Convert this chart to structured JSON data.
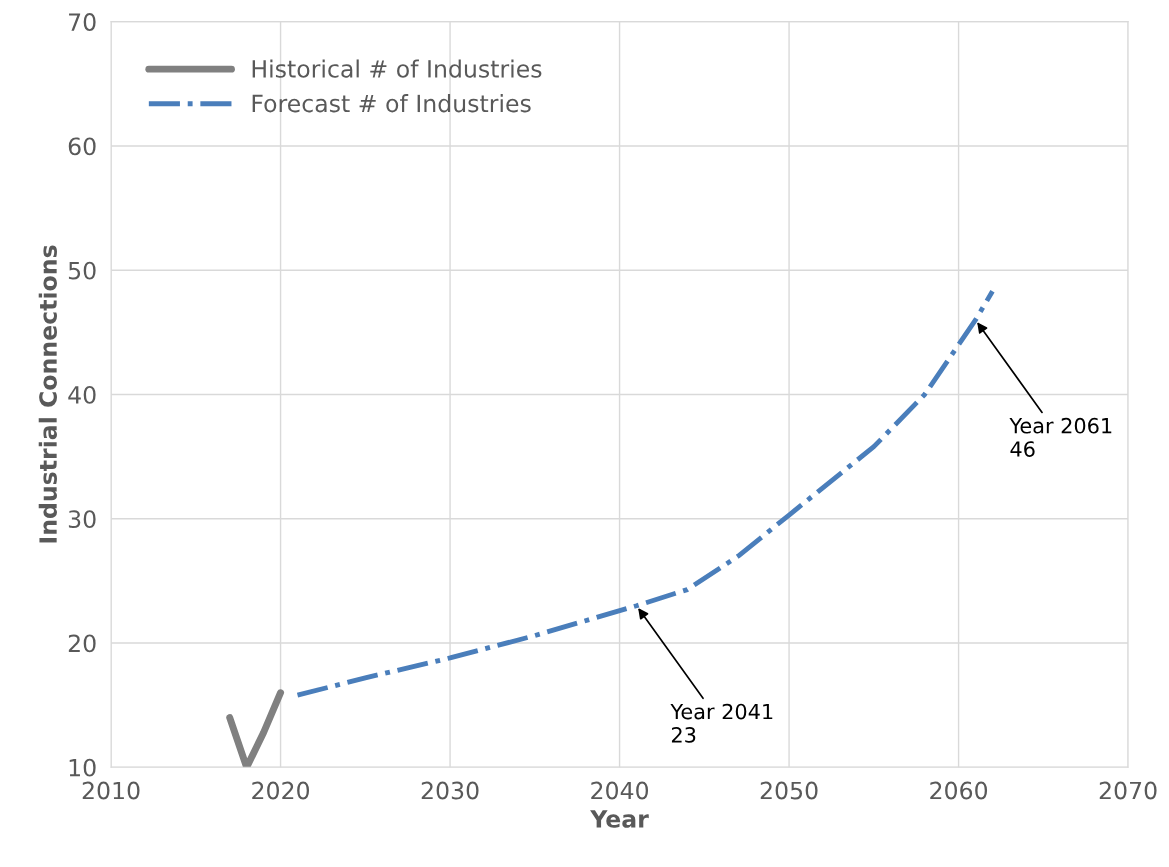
{
  "chart_data": {
    "type": "line",
    "xlabel": "Year",
    "ylabel": "Industrial Connections",
    "xlim": [
      2010,
      2070
    ],
    "xticks": [
      2010,
      2020,
      2030,
      2040,
      2050,
      2060,
      2070
    ],
    "ylim": [
      10,
      70
    ],
    "yticks": [
      10,
      20,
      30,
      40,
      50,
      60,
      70
    ],
    "grid": true,
    "legend": "top left",
    "marker": "none",
    "series": [
      {
        "name": "Historical # of Industries",
        "color": "#808080",
        "line_style": "solid",
        "x": [
          2017,
          2018,
          2019,
          2020
        ],
        "values": [
          14,
          10,
          12.8,
          16
        ]
      },
      {
        "name": "Forecast # of Industries",
        "color": "#4a7ebb",
        "line_style": "dashdot",
        "x": [
          2021,
          2025,
          2030,
          2035,
          2041,
          2044,
          2047,
          2050,
          2055,
          2058,
          2061,
          2062
        ],
        "values": [
          15.8,
          17.2,
          18.8,
          20.6,
          23,
          24.3,
          27,
          30.3,
          35.8,
          40,
          46,
          48.3
        ]
      }
    ],
    "annotations": [
      {
        "text": "Year 2041\n23",
        "x": 2041,
        "y": 23
      },
      {
        "text": "Year 2061\n46",
        "x": 2061,
        "y": 46
      }
    ]
  }
}
